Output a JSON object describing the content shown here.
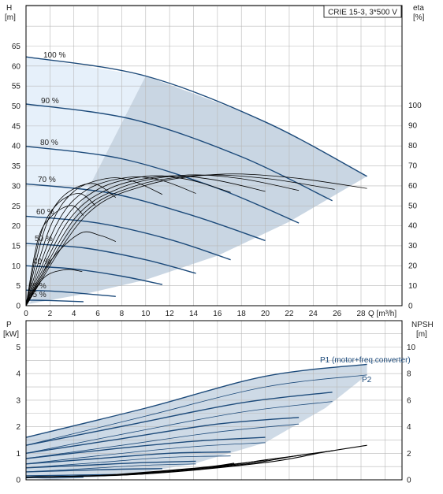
{
  "colors": {
    "envelope": "#c9d6e3",
    "envelope_light": "#e6f0fa",
    "curve": "#1c4a7a",
    "eta_curve": "#000000",
    "grid": "#b8b8b8",
    "axis": "#000000"
  },
  "chart_data": [
    {
      "type": "line",
      "title": "CRIE 15-3, 3*500 V",
      "y_axis_left": {
        "label": "H",
        "unit": "[m]",
        "range": [
          0,
          65
        ],
        "ticks": [
          "0",
          "5",
          "10",
          "15",
          "20",
          "25",
          "30",
          "35",
          "40",
          "45",
          "50",
          "55",
          "60",
          "65"
        ]
      },
      "y_axis_right": {
        "label": "eta",
        "unit": "[%]",
        "range": [
          0,
          100
        ],
        "ticks": [
          "0",
          "10",
          "20",
          "30",
          "40",
          "50",
          "60",
          "70",
          "80",
          "90",
          "100"
        ]
      },
      "x_axis": {
        "label": "Q [m³/h]",
        "range": [
          0,
          28
        ],
        "ticks": [
          "0",
          "2",
          "4",
          "6",
          "8",
          "10",
          "12",
          "14",
          "16",
          "18",
          "20",
          "22",
          "24",
          "26",
          "28"
        ]
      },
      "grid": true,
      "speed_labels": [
        "100 %",
        "90 %",
        "80 %",
        "70 %",
        "60 %",
        "50 %",
        "40 %",
        "25 %",
        "15 %"
      ],
      "qh_curves": [
        {
          "speed": 1.0,
          "points": [
            [
              0,
              62.3
            ],
            [
              10,
              57.5
            ],
            [
              20,
              46
            ],
            [
              28.5,
              32.4
            ]
          ]
        },
        {
          "speed": 0.9,
          "points": [
            [
              0,
              50.5
            ],
            [
              9,
              46.6
            ],
            [
              18,
              37.3
            ],
            [
              25.6,
              26.3
            ]
          ]
        },
        {
          "speed": 0.8,
          "points": [
            [
              0,
              39.9
            ],
            [
              8,
              36.8
            ],
            [
              16,
              29.4
            ],
            [
              22.8,
              20.7
            ]
          ]
        },
        {
          "speed": 0.7,
          "points": [
            [
              0,
              30.5
            ],
            [
              7,
              28.2
            ],
            [
              14,
              22.5
            ],
            [
              20,
              16.3
            ]
          ]
        },
        {
          "speed": 0.6,
          "points": [
            [
              0,
              22.4
            ],
            [
              6,
              20.7
            ],
            [
              12,
              16.6
            ],
            [
              17.1,
              11.5
            ]
          ]
        },
        {
          "speed": 0.5,
          "points": [
            [
              0,
              15.6
            ],
            [
              5,
              14.4
            ],
            [
              10,
              11.5
            ],
            [
              14.2,
              8.1
            ]
          ]
        },
        {
          "speed": 0.4,
          "points": [
            [
              0,
              10.0
            ],
            [
              4,
              9.2
            ],
            [
              8,
              7.4
            ],
            [
              11.4,
              5.3
            ]
          ]
        },
        {
          "speed": 0.25,
          "points": [
            [
              0,
              3.9
            ],
            [
              3,
              3.5
            ],
            [
              7.5,
              2.3
            ]
          ]
        },
        {
          "speed": 0.15,
          "points": [
            [
              0,
              1.4
            ],
            [
              2,
              1.3
            ],
            [
              4.8,
              1.0
            ]
          ]
        }
      ],
      "eta_curves": [
        {
          "points": [
            [
              0,
              0
            ],
            [
              5,
              45
            ],
            [
              10,
              60
            ],
            [
              16,
              65.5
            ],
            [
              22,
              64
            ],
            [
              28.5,
              58.5
            ]
          ]
        },
        {
          "points": [
            [
              0,
              0
            ],
            [
              4.5,
              44
            ],
            [
              9,
              59.5
            ],
            [
              14.5,
              65
            ],
            [
              20,
              63.5
            ],
            [
              25.8,
              58
            ]
          ]
        },
        {
          "points": [
            [
              0,
              0
            ],
            [
              4,
              43
            ],
            [
              8,
              59
            ],
            [
              13,
              65
            ],
            [
              17.8,
              63.5
            ],
            [
              22.8,
              57.5
            ]
          ]
        },
        {
          "points": [
            [
              0,
              0
            ],
            [
              3.5,
              42
            ],
            [
              7,
              58.5
            ],
            [
              11.5,
              64.5
            ],
            [
              15.5,
              63
            ],
            [
              20,
              57
            ]
          ]
        },
        {
          "points": [
            [
              0,
              0
            ],
            [
              3,
              41
            ],
            [
              6,
              58
            ],
            [
              10,
              64.5
            ],
            [
              13.5,
              63
            ],
            [
              17.1,
              56.5
            ]
          ]
        },
        {
          "points": [
            [
              0,
              0
            ],
            [
              2.5,
              40
            ],
            [
              5,
              57.5
            ],
            [
              8.5,
              64
            ],
            [
              11.3,
              62.5
            ],
            [
              14.2,
              56
            ]
          ]
        },
        {
          "points": [
            [
              0,
              0
            ],
            [
              2,
              39
            ],
            [
              4,
              57
            ],
            [
              6.8,
              63.5
            ],
            [
              9,
              62
            ],
            [
              11.4,
              55.5
            ]
          ]
        },
        {
          "points": [
            [
              0,
              0
            ],
            [
              1.5,
              37
            ],
            [
              3,
              54
            ],
            [
              5.5,
              61
            ],
            [
              7.5,
              54
            ]
          ]
        },
        {
          "points": [
            [
              0,
              0
            ],
            [
              1.2,
              35
            ],
            [
              2.5,
              50
            ],
            [
              4.4,
              56
            ],
            [
              5.8,
              50
            ]
          ]
        },
        {
          "points": [
            [
              0,
              0
            ],
            [
              1,
              33
            ],
            [
              2.2,
              45
            ],
            [
              3.8,
              50
            ],
            [
              4.8,
              45
            ]
          ]
        },
        {
          "points": [
            [
              0,
              0
            ],
            [
              2,
              22
            ],
            [
              4.5,
              36
            ],
            [
              6.2,
              35
            ],
            [
              7.5,
              32
            ]
          ]
        },
        {
          "points": [
            [
              0,
              0
            ],
            [
              1.5,
              14
            ],
            [
              3.3,
              18
            ],
            [
              4.7,
              17
            ]
          ]
        }
      ]
    },
    {
      "type": "line",
      "y_axis_left": {
        "label": "P",
        "unit": "[kW]",
        "range": [
          0,
          5
        ],
        "ticks": [
          "0",
          "1",
          "2",
          "3",
          "4",
          "5"
        ]
      },
      "y_axis_right": {
        "label": "NPSH",
        "unit": "[m]",
        "range": [
          0,
          10
        ],
        "ticks": [
          "0",
          "2",
          "4",
          "6",
          "8",
          "10"
        ]
      },
      "x_axis": {
        "label": "Q [m³/h]",
        "range": [
          0,
          28
        ]
      },
      "grid": true,
      "series_labels": [
        "P1 (motor+freq.converter)",
        "P2"
      ],
      "p1_curves": [
        {
          "points": [
            [
              0,
              1.6
            ],
            [
              10,
              2.7
            ],
            [
              20,
              3.9
            ],
            [
              28.5,
              4.35
            ]
          ]
        },
        {
          "points": [
            [
              0,
              1.3
            ],
            [
              9,
              2.1
            ],
            [
              18,
              2.9
            ],
            [
              25.6,
              3.3
            ]
          ]
        },
        {
          "points": [
            [
              0,
              1.0
            ],
            [
              8,
              1.55
            ],
            [
              16,
              2.1
            ],
            [
              22.8,
              2.35
            ]
          ]
        },
        {
          "points": [
            [
              0,
              0.8
            ],
            [
              7,
              1.15
            ],
            [
              14,
              1.45
            ],
            [
              20,
              1.6
            ]
          ]
        },
        {
          "points": [
            [
              0,
              0.6
            ],
            [
              6,
              0.8
            ],
            [
              12,
              1.0
            ],
            [
              17.1,
              1.05
            ]
          ]
        },
        {
          "points": [
            [
              0,
              0.45
            ],
            [
              5,
              0.55
            ],
            [
              10,
              0.65
            ],
            [
              14.2,
              0.7
            ]
          ]
        },
        {
          "points": [
            [
              0,
              0.3
            ],
            [
              4,
              0.35
            ],
            [
              8,
              0.4
            ],
            [
              11.4,
              0.42
            ]
          ]
        },
        {
          "points": [
            [
              0,
              0.15
            ],
            [
              3,
              0.17
            ],
            [
              7.5,
              0.2
            ]
          ]
        },
        {
          "points": [
            [
              0,
              0.08
            ],
            [
              2,
              0.09
            ],
            [
              4.8,
              0.1
            ]
          ]
        }
      ],
      "p2_curves": [
        {
          "points": [
            [
              0,
              1.3
            ],
            [
              10,
              2.4
            ],
            [
              20,
              3.5
            ],
            [
              28.5,
              3.95
            ]
          ]
        },
        {
          "points": [
            [
              0,
              1.0
            ],
            [
              9,
              1.8
            ],
            [
              18,
              2.55
            ],
            [
              25.6,
              2.95
            ]
          ]
        },
        {
          "points": [
            [
              0,
              0.8
            ],
            [
              8,
              1.3
            ],
            [
              16,
              1.8
            ],
            [
              22.8,
              2.1
            ]
          ]
        },
        {
          "points": [
            [
              0,
              0.6
            ],
            [
              7,
              0.95
            ],
            [
              14,
              1.25
            ],
            [
              20,
              1.4
            ]
          ]
        },
        {
          "points": [
            [
              0,
              0.45
            ],
            [
              6,
              0.65
            ],
            [
              12,
              0.85
            ],
            [
              17.1,
              0.9
            ]
          ]
        },
        {
          "points": [
            [
              0,
              0.3
            ],
            [
              5,
              0.42
            ],
            [
              10,
              0.55
            ],
            [
              14.2,
              0.6
            ]
          ]
        }
      ],
      "npsh_curves": [
        {
          "points": [
            [
              0,
              0.2
            ],
            [
              10,
              0.45
            ],
            [
              20,
              1.3
            ],
            [
              25,
              2.1
            ],
            [
              28.5,
              2.6
            ]
          ]
        },
        {
          "points": [
            [
              0,
              0.2
            ],
            [
              9,
              0.4
            ],
            [
              18,
              1.15
            ],
            [
              22.5,
              1.8
            ],
            [
              25.7,
              2.2
            ]
          ]
        },
        {
          "points": [
            [
              0,
              0.2
            ],
            [
              8,
              0.38
            ],
            [
              16,
              1.0
            ],
            [
              20,
              1.5
            ],
            [
              23,
              1.85
            ]
          ]
        },
        {
          "points": [
            [
              0,
              0.2
            ],
            [
              7,
              0.35
            ],
            [
              14,
              0.85
            ],
            [
              18,
              1.25
            ],
            [
              20.2,
              1.5
            ]
          ]
        },
        {
          "points": [
            [
              0,
              0.2
            ],
            [
              6,
              0.32
            ],
            [
              12,
              0.72
            ],
            [
              15.5,
              1.0
            ],
            [
              17.4,
              1.25
            ]
          ]
        }
      ]
    }
  ]
}
